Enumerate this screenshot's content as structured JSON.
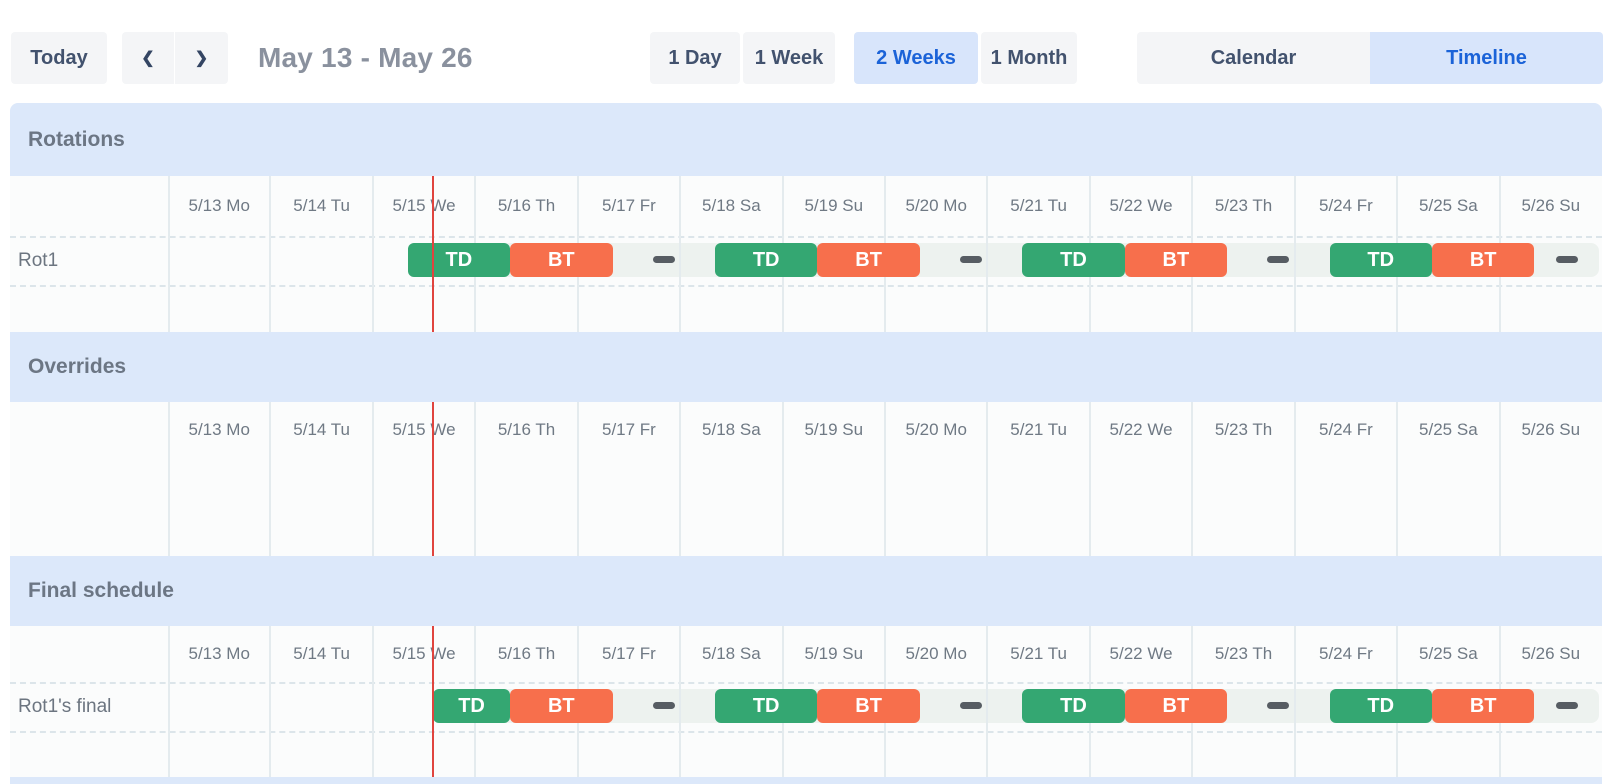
{
  "toolbar": {
    "today_label": "Today",
    "prev_icon": "chevron-left",
    "next_icon": "chevron-right",
    "range_title": "May 13 - May 26",
    "views": [
      {
        "label": "1 Day",
        "active": false
      },
      {
        "label": "1 Week",
        "active": false
      },
      {
        "label": "2 Weeks",
        "active": true
      },
      {
        "label": "1 Month",
        "active": false
      }
    ],
    "modes": [
      {
        "label": "Calendar",
        "active": false
      },
      {
        "label": "Timeline",
        "active": true
      }
    ]
  },
  "days": [
    "5/13 Mo",
    "5/14 Tu",
    "5/15 We",
    "5/16 Th",
    "5/17 Fr",
    "5/18 Sa",
    "5/19 Su",
    "5/20 Mo",
    "5/21 Tu",
    "5/22 We",
    "5/23 Th",
    "5/24 Fr",
    "5/25 Sa",
    "5/26 Su"
  ],
  "now_marker": {
    "position_days": 2.587,
    "day": "5/15 We"
  },
  "sections": [
    {
      "id": "rotations",
      "title": "Rotations",
      "rows": [
        {
          "label": "Rot1",
          "lane": {
            "start": 2.34,
            "end": 13.97
          },
          "events": [
            {
              "kind": "shift",
              "label": "TD",
              "color": "td",
              "start": 2.34,
              "end": 3.34
            },
            {
              "kind": "shift",
              "label": "BT",
              "color": "bt",
              "start": 3.34,
              "end": 4.34
            },
            {
              "kind": "gap",
              "center": 4.84
            },
            {
              "kind": "shift",
              "label": "TD",
              "color": "td",
              "start": 5.34,
              "end": 6.34
            },
            {
              "kind": "shift",
              "label": "BT",
              "color": "bt",
              "start": 6.34,
              "end": 7.34
            },
            {
              "kind": "gap",
              "center": 7.84
            },
            {
              "kind": "shift",
              "label": "TD",
              "color": "td",
              "start": 8.34,
              "end": 9.34
            },
            {
              "kind": "shift",
              "label": "BT",
              "color": "bt",
              "start": 9.34,
              "end": 10.34
            },
            {
              "kind": "gap",
              "center": 10.84
            },
            {
              "kind": "shift",
              "label": "TD",
              "color": "td",
              "start": 11.34,
              "end": 12.34
            },
            {
              "kind": "shift",
              "label": "BT",
              "color": "bt",
              "start": 12.34,
              "end": 13.34
            },
            {
              "kind": "gap",
              "center": 13.66
            }
          ]
        }
      ]
    },
    {
      "id": "overrides",
      "title": "Overrides",
      "rows": []
    },
    {
      "id": "final",
      "title": "Final schedule",
      "rows": [
        {
          "label": "Rot1's final",
          "lane": {
            "start": 2.587,
            "end": 13.97
          },
          "events": [
            {
              "kind": "shift",
              "label": "TD",
              "color": "td",
              "start": 2.587,
              "end": 3.34
            },
            {
              "kind": "shift",
              "label": "BT",
              "color": "bt",
              "start": 3.34,
              "end": 4.34
            },
            {
              "kind": "gap",
              "center": 4.84
            },
            {
              "kind": "shift",
              "label": "TD",
              "color": "td",
              "start": 5.34,
              "end": 6.34
            },
            {
              "kind": "shift",
              "label": "BT",
              "color": "bt",
              "start": 6.34,
              "end": 7.34
            },
            {
              "kind": "gap",
              "center": 7.84
            },
            {
              "kind": "shift",
              "label": "TD",
              "color": "td",
              "start": 8.34,
              "end": 9.34
            },
            {
              "kind": "shift",
              "label": "BT",
              "color": "bt",
              "start": 9.34,
              "end": 10.34
            },
            {
              "kind": "gap",
              "center": 10.84
            },
            {
              "kind": "shift",
              "label": "TD",
              "color": "td",
              "start": 11.34,
              "end": 12.34
            },
            {
              "kind": "shift",
              "label": "BT",
              "color": "bt",
              "start": 12.34,
              "end": 13.34
            },
            {
              "kind": "gap",
              "center": 13.66
            }
          ]
        }
      ]
    }
  ],
  "colors": {
    "shift_td": "#34a772",
    "shift_bt": "#f76f4c",
    "now_line": "#e0443e",
    "section_header_bg": "#dce8fa",
    "active_button_bg": "#d8e5fb",
    "active_button_text": "#1b63d8",
    "button_bg": "#f4f5f7",
    "button_text": "#42526e",
    "lane_bg": "#edf2ef",
    "gap_dash": "#575d63"
  }
}
